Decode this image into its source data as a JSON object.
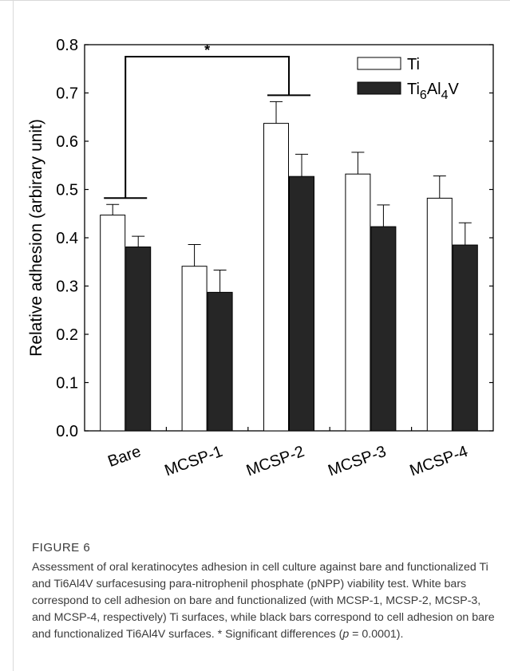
{
  "chart_data": {
    "type": "bar",
    "categories": [
      "Bare",
      "MCSP-1",
      "MCSP-2",
      "MCSP-3",
      "MCSP-4"
    ],
    "series": [
      {
        "name": "Ti",
        "values": [
          0.447,
          0.341,
          0.637,
          0.532,
          0.482
        ],
        "errors": [
          0.022,
          0.045,
          0.045,
          0.045,
          0.046
        ],
        "fill": "#ffffff"
      },
      {
        "name": "Ti6Al4V",
        "values": [
          0.381,
          0.287,
          0.527,
          0.423,
          0.385
        ],
        "errors": [
          0.022,
          0.046,
          0.046,
          0.045,
          0.046
        ],
        "fill": "#262626"
      }
    ],
    "legend_labels": [
      {
        "main": "Ti",
        "parts": []
      },
      {
        "main": "",
        "parts": [
          [
            "Ti",
            false
          ],
          [
            "6",
            true
          ],
          [
            "Al",
            false
          ],
          [
            "4",
            true
          ],
          [
            "V",
            false
          ]
        ]
      }
    ],
    "ylabel": "Relative adhesion (arbirary unit)",
    "xlabel": "",
    "ylim": [
      0.0,
      0.8
    ],
    "yticks": [
      "0.0",
      "0.1",
      "0.2",
      "0.3",
      "0.4",
      "0.5",
      "0.6",
      "0.7",
      "0.8"
    ],
    "legend_position": "top-right",
    "significance": {
      "from": "Bare",
      "to": "MCSP-2",
      "marker": "*"
    }
  },
  "caption": {
    "label": "FIGURE 6",
    "text_1": "Assessment of oral keratinocytes adhesion in cell culture against bare and functionalized Ti and Ti6Al4V surfacesusing para-nitrophenil phosphate (pNPP) viability test. White bars correspond to cell adhesion on bare and functionalized (with MCSP-1, MCSP-2, MCSP-3, and MCSP-4, respectively) Ti surfaces, while black bars correspond to cell adhesion on bare and functionalized Ti6Al4V surfaces. * Significant differences (",
    "p_symbol": "p",
    "text_2": " = 0.0001)."
  }
}
